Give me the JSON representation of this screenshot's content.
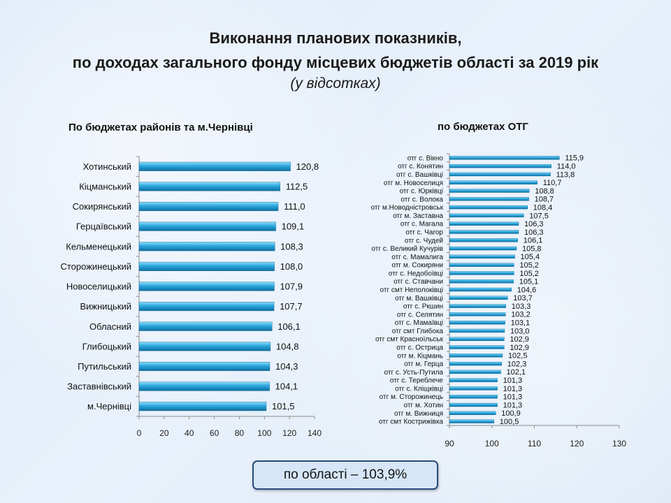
{
  "title_line1": "Виконання планових показників,",
  "title_line2": "по доходах загального фонду місцевих бюджетів області за 2019 рік",
  "title_line3": "(у відсотках)",
  "summary": "по області – 103,9%",
  "chart_data": [
    {
      "type": "bar",
      "orientation": "horizontal",
      "title": "По бюджетах районів  та м.Чернівці",
      "xlim": [
        0,
        140
      ],
      "ticks": [
        "0",
        "20",
        "40",
        "60",
        "80",
        "100",
        "120",
        "140"
      ],
      "categories": [
        "Хотинський",
        "Кіцманський",
        "Сокирянський",
        "Герцаївський",
        "Кельменецький",
        "Сторожинецький",
        "Новоселицький",
        "Вижницький",
        "Обласний",
        "Глибоцький",
        "Путильський",
        "Заставнівський",
        "м.Чернівці"
      ],
      "values": [
        120.8,
        112.5,
        111.0,
        109.1,
        108.3,
        108.0,
        107.9,
        107.7,
        106.1,
        104.8,
        104.3,
        104.1,
        101.5
      ],
      "labels": [
        "120,8",
        "112,5",
        "111,0",
        "109,1",
        "108,3",
        "108,0",
        "107,9",
        "107,7",
        "106,1",
        "104,8",
        "104,3",
        "104,1",
        "101,5"
      ],
      "bar_color": "#2a9fd6"
    },
    {
      "type": "bar",
      "orientation": "horizontal",
      "title": "по бюджетах ОТГ",
      "xlim": [
        90,
        130
      ],
      "ticks": [
        "90",
        "100",
        "110",
        "120",
        "130"
      ],
      "categories": [
        "отг с. Вікно",
        "отг с. Конятин",
        "отг с. Вашківці",
        "отг м. Новоселиця",
        "отг с. Юрківці",
        "отг с. Волока",
        "отг м.Новодністровськ",
        "отг м. Заставна",
        "отг с. Магала",
        "отг с. Чагор",
        "отг с. Чудей",
        "отг с. Великий Кучурів",
        "отг с. Мамалига",
        "отг м. Сокиряни",
        "отг с. Недобоївці",
        "отг с. Ставчани",
        "отг смт Неполоківці",
        "отг м. Вашківці",
        "отг с. Ркшин",
        "отг с. Селятин",
        "отг с. Мамаївці",
        "отг смт Глибока",
        "отг смт Красноїльськ",
        "отг с. Острица",
        "отг м. Кіцмань",
        "отг м. Герца",
        "отг с. Усть-Путила",
        "отг с. Тереблече",
        "отг с. Кліщківці",
        "отг м. Сторожинець",
        "отг м. Хотин",
        "отг м. Вижниця",
        "отг смт Кострижівка"
      ],
      "values": [
        115.9,
        114.0,
        113.8,
        110.7,
        108.8,
        108.7,
        108.4,
        107.5,
        106.3,
        106.3,
        106.1,
        105.8,
        105.4,
        105.2,
        105.2,
        105.1,
        104.6,
        103.7,
        103.3,
        103.2,
        103.1,
        103.0,
        102.9,
        102.9,
        102.5,
        102.3,
        102.1,
        101.3,
        101.3,
        101.3,
        101.3,
        100.9,
        100.5
      ],
      "labels": [
        "115,9",
        "114,0",
        "113,8",
        "110,7",
        "108,8",
        "108,7",
        "108,4",
        "107,5",
        "106,3",
        "106,3",
        "106,1",
        "105,8",
        "105,4",
        "105,2",
        "105,2",
        "105,1",
        "104,6",
        "103,7",
        "103,3",
        "103,2",
        "103,1",
        "103,0",
        "102,9",
        "102,9",
        "102,5",
        "102,3",
        "102,1",
        "101,3",
        "101,3",
        "101,3",
        "101,3",
        "100,9",
        "100,5"
      ],
      "bar_color": "#2a9fd6"
    }
  ]
}
